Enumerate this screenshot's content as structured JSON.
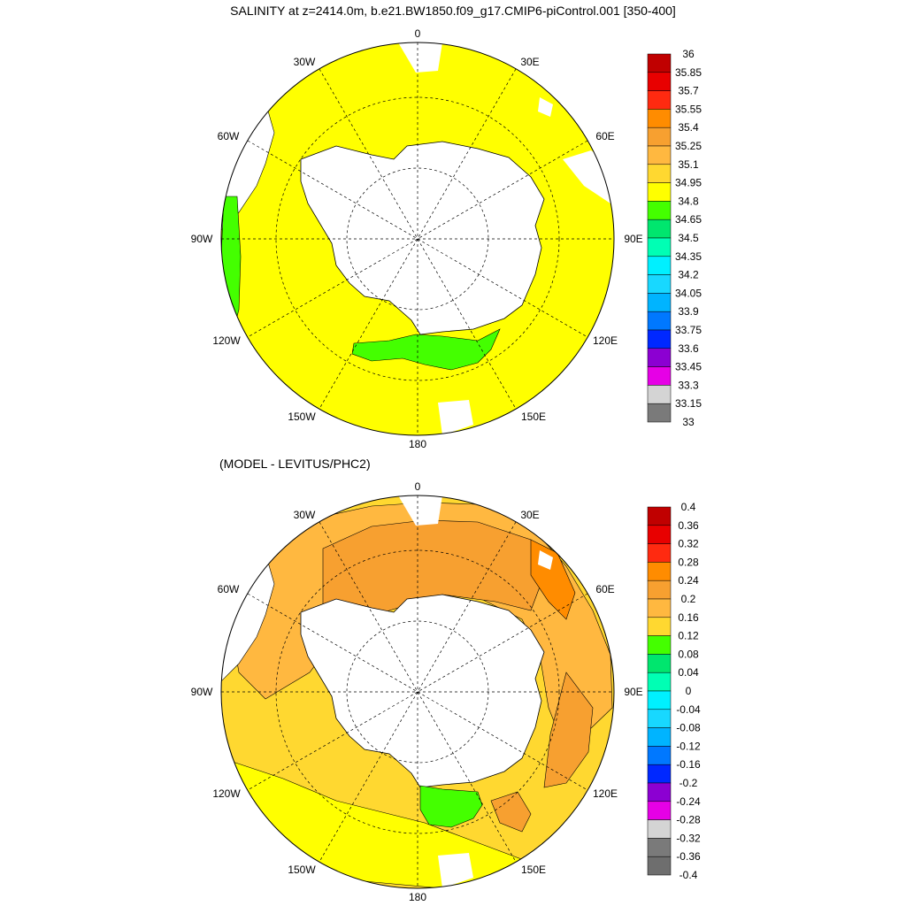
{
  "chart_data": [
    {
      "type": "heatmap",
      "projection": "south-polar-stereographic",
      "title": "SALINITY at z=2414.0m, b.e21.BW1850.f09_g17.CMIP6-piControl.001 [350-400]",
      "longitude_labels": [
        "0",
        "30E",
        "60E",
        "90E",
        "120E",
        "150E",
        "180",
        "150W",
        "120W",
        "90W",
        "60W",
        "30W"
      ],
      "colorbar_levels": [
        "36",
        "35.85",
        "35.7",
        "35.55",
        "35.4",
        "35.25",
        "35.1",
        "34.95",
        "34.8",
        "34.65",
        "34.5",
        "34.35",
        "34.2",
        "34.05",
        "33.9",
        "33.75",
        "33.6",
        "33.45",
        "33.3",
        "33.15",
        "33"
      ],
      "colorbar_colors": [
        "#c00000",
        "#e80000",
        "#ff2a10",
        "#ff8c00",
        "#f7a030",
        "#ffb840",
        "#ffd830",
        "#ffff00",
        "#44ff00",
        "#00e66e",
        "#00ffb4",
        "#00f0ff",
        "#18d8ff",
        "#00b4ff",
        "#0078ff",
        "#0028ff",
        "#8c00d2",
        "#e600e6",
        "#d4d4d4",
        "#7a7a7a"
      ],
      "dominant_value_range": [
        34.8,
        34.95
      ],
      "grid": true
    },
    {
      "type": "heatmap",
      "projection": "south-polar-stereographic",
      "title": "(MODEL - LEVITUS/PHC2)",
      "longitude_labels": [
        "0",
        "30E",
        "60E",
        "90E",
        "120E",
        "150E",
        "180",
        "150W",
        "120W",
        "90W",
        "60W",
        "30W"
      ],
      "colorbar_levels": [
        "0.4",
        "0.36",
        "0.32",
        "0.28",
        "0.24",
        "0.2",
        "0.16",
        "0.12",
        "0.08",
        "0.04",
        "0",
        "-0.04",
        "-0.08",
        "-0.12",
        "-0.16",
        "-0.2",
        "-0.24",
        "-0.28",
        "-0.32",
        "-0.36",
        "-0.4"
      ],
      "colorbar_colors": [
        "#c00000",
        "#e80000",
        "#ff2a10",
        "#ff8c00",
        "#f7a030",
        "#ffb840",
        "#ffd830",
        "#44ff00",
        "#00e66e",
        "#00ffb4",
        "#00f0ff",
        "#18d8ff",
        "#00b4ff",
        "#0078ff",
        "#0028ff",
        "#8c00d2",
        "#e600e6",
        "#d4d4d4",
        "#7a7a7a",
        "#6e6e6e"
      ],
      "grid": true
    }
  ]
}
